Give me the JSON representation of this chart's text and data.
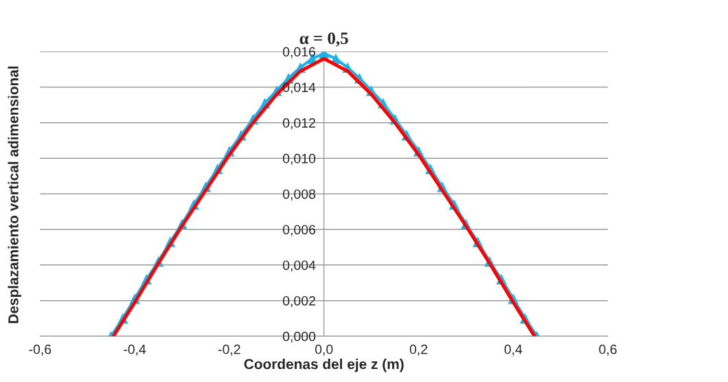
{
  "chart_data": {
    "type": "line",
    "title": "α = 0,5",
    "xlabel": "Coordenas del eje z (m)",
    "ylabel": "Desplazamiento vertical adimensional",
    "xlim": [
      -0.6,
      0.6
    ],
    "xticks": [
      {
        "value": -0.6,
        "label": "-0,6"
      },
      {
        "value": -0.4,
        "label": "-0,4"
      },
      {
        "value": -0.2,
        "label": "-0,2"
      },
      {
        "value": 0,
        "label": "0,0"
      },
      {
        "value": 0.2,
        "label": "0,2"
      },
      {
        "value": 0.4,
        "label": "0,4"
      },
      {
        "value": 0.6,
        "label": "0,6"
      }
    ],
    "ylim": [
      0,
      0.016
    ],
    "yticks": [
      {
        "value": 0,
        "label": "0,000"
      },
      {
        "value": 0.002,
        "label": "0,002"
      },
      {
        "value": 0.004,
        "label": "0,004"
      },
      {
        "value": 0.006,
        "label": "0,006"
      },
      {
        "value": 0.008,
        "label": "0,008"
      },
      {
        "value": 0.01,
        "label": "0,010"
      },
      {
        "value": 0.012,
        "label": "0,012"
      },
      {
        "value": 0.014,
        "label": "0,014"
      },
      {
        "value": 0.016,
        "label": "0,016"
      }
    ],
    "grid": "y",
    "series": [
      {
        "color": "#1fb0e6",
        "marker": "triangle",
        "x": [
          -0.45,
          -0.425,
          -0.4,
          -0.375,
          -0.35,
          -0.325,
          -0.3,
          -0.275,
          -0.25,
          -0.225,
          -0.2,
          -0.175,
          -0.15,
          -0.125,
          -0.1,
          -0.075,
          -0.05,
          -0.025,
          0,
          0.025,
          0.05,
          0.075,
          0.1,
          0.125,
          0.15,
          0.175,
          0.2,
          0.225,
          0.25,
          0.275,
          0.3,
          0.325,
          0.35,
          0.375,
          0.4,
          0.425,
          0.45
        ],
        "values": [
          0,
          0.001,
          0.0021,
          0.0032,
          0.0042,
          0.0053,
          0.0063,
          0.0074,
          0.0084,
          0.0094,
          0.0104,
          0.0113,
          0.0122,
          0.0131,
          0.0138,
          0.0145,
          0.0151,
          0.0156,
          0.0159,
          0.0156,
          0.0151,
          0.0145,
          0.0138,
          0.0131,
          0.0122,
          0.0113,
          0.0104,
          0.0094,
          0.0084,
          0.0074,
          0.0063,
          0.0053,
          0.0042,
          0.0032,
          0.0021,
          0.001,
          0
        ]
      },
      {
        "color": "#ff0000",
        "marker": "none",
        "x": [
          -0.445,
          -0.4,
          -0.35,
          -0.3,
          -0.25,
          -0.2,
          -0.15,
          -0.1,
          -0.05,
          0,
          0.05,
          0.1,
          0.15,
          0.2,
          0.25,
          0.3,
          0.35,
          0.4,
          0.445
        ],
        "values": [
          0,
          0.0019,
          0.0041,
          0.0062,
          0.0082,
          0.0102,
          0.012,
          0.0136,
          0.0149,
          0.0156,
          0.0149,
          0.0136,
          0.012,
          0.0102,
          0.0082,
          0.0062,
          0.0041,
          0.0019,
          0
        ]
      }
    ]
  }
}
